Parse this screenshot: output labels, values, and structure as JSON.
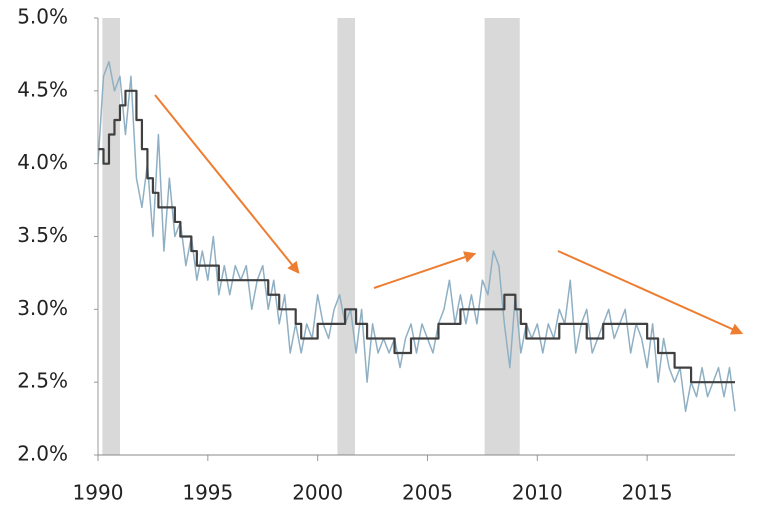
{
  "chart_data": {
    "type": "line",
    "x": [
      1990,
      1990.25,
      1990.5,
      1990.75,
      1991,
      1991.25,
      1991.5,
      1991.75,
      1992,
      1992.25,
      1992.5,
      1992.75,
      1993,
      1993.25,
      1993.5,
      1993.75,
      1994,
      1994.25,
      1994.5,
      1994.75,
      1995,
      1995.25,
      1995.5,
      1995.75,
      1996,
      1996.25,
      1996.5,
      1996.75,
      1997,
      1997.25,
      1997.5,
      1997.75,
      1998,
      1998.25,
      1998.5,
      1998.75,
      1999,
      1999.25,
      1999.5,
      1999.75,
      2000,
      2000.25,
      2000.5,
      2000.75,
      2001,
      2001.25,
      2001.5,
      2001.75,
      2002,
      2002.25,
      2002.5,
      2002.75,
      2003,
      2003.25,
      2003.5,
      2003.75,
      2004,
      2004.25,
      2004.5,
      2004.75,
      2005,
      2005.25,
      2005.5,
      2005.75,
      2006,
      2006.25,
      2006.5,
      2006.75,
      2007,
      2007.25,
      2007.5,
      2007.75,
      2008,
      2008.25,
      2008.5,
      2008.75,
      2009,
      2009.25,
      2009.5,
      2009.75,
      2010,
      2010.25,
      2010.5,
      2010.75,
      2011,
      2011.25,
      2011.5,
      2011.75,
      2012,
      2012.25,
      2012.5,
      2012.75,
      2013,
      2013.25,
      2013.5,
      2013.75,
      2014,
      2014.25,
      2014.5,
      2014.75,
      2015,
      2015.25,
      2015.5,
      2015.75,
      2016,
      2016.25,
      2016.5,
      2016.75,
      2017,
      2017.25,
      2017.5,
      2017.75,
      2018,
      2018.25,
      2018.5,
      2018.75,
      2019
    ],
    "series": [
      {
        "color": "#8fb0c4",
        "width": 1.5,
        "step": false,
        "values": [
          4.0,
          4.6,
          4.7,
          4.5,
          4.6,
          4.2,
          4.6,
          3.9,
          3.7,
          4.0,
          3.5,
          4.2,
          3.4,
          3.9,
          3.5,
          3.6,
          3.3,
          3.5,
          3.2,
          3.4,
          3.2,
          3.5,
          3.1,
          3.3,
          3.1,
          3.3,
          3.2,
          3.3,
          3.0,
          3.2,
          3.3,
          3.0,
          3.2,
          2.9,
          3.1,
          2.7,
          2.9,
          2.7,
          2.9,
          2.8,
          3.1,
          2.9,
          2.8,
          3.0,
          3.1,
          2.9,
          3.0,
          2.7,
          3.0,
          2.5,
          2.9,
          2.7,
          2.8,
          2.7,
          2.8,
          2.6,
          2.8,
          2.9,
          2.7,
          2.9,
          2.8,
          2.7,
          2.9,
          3.0,
          3.2,
          2.9,
          3.1,
          2.9,
          3.1,
          2.9,
          3.2,
          3.1,
          3.4,
          3.3,
          2.9,
          2.6,
          3.1,
          2.7,
          2.9,
          2.8,
          2.9,
          2.7,
          2.9,
          2.8,
          3.0,
          2.9,
          3.2,
          2.7,
          2.9,
          3.0,
          2.7,
          2.8,
          2.9,
          3.0,
          2.8,
          2.9,
          3.0,
          2.7,
          2.9,
          2.8,
          2.6,
          2.9,
          2.5,
          2.8,
          2.6,
          2.5,
          2.6,
          2.3,
          2.5,
          2.4,
          2.6,
          2.4,
          2.5,
          2.6,
          2.4,
          2.6,
          2.3
        ]
      },
      {
        "color": "#404040",
        "width": 2.2,
        "step": true,
        "values": [
          4.1,
          4.0,
          4.2,
          4.3,
          4.4,
          4.5,
          4.5,
          4.3,
          4.1,
          3.9,
          3.8,
          3.7,
          3.7,
          3.7,
          3.6,
          3.5,
          3.5,
          3.4,
          3.3,
          3.3,
          3.3,
          3.3,
          3.2,
          3.2,
          3.2,
          3.2,
          3.2,
          3.2,
          3.2,
          3.2,
          3.2,
          3.1,
          3.1,
          3.0,
          3.0,
          3.0,
          2.9,
          2.8,
          2.8,
          2.8,
          2.9,
          2.9,
          2.9,
          2.9,
          2.9,
          3.0,
          3.0,
          2.9,
          2.9,
          2.8,
          2.8,
          2.8,
          2.8,
          2.8,
          2.7,
          2.7,
          2.7,
          2.8,
          2.8,
          2.8,
          2.8,
          2.8,
          2.9,
          2.9,
          2.9,
          2.9,
          3.0,
          3.0,
          3.0,
          3.0,
          3.0,
          3.0,
          3.0,
          3.0,
          3.1,
          3.1,
          3.0,
          2.9,
          2.8,
          2.8,
          2.8,
          2.8,
          2.8,
          2.8,
          2.9,
          2.9,
          2.9,
          2.9,
          2.9,
          2.8,
          2.8,
          2.8,
          2.9,
          2.9,
          2.9,
          2.9,
          2.9,
          2.9,
          2.9,
          2.9,
          2.8,
          2.8,
          2.7,
          2.7,
          2.7,
          2.6,
          2.6,
          2.6,
          2.5,
          2.5,
          2.5,
          2.5,
          2.5,
          2.5,
          2.5,
          2.5,
          2.5
        ]
      }
    ],
    "shading": [
      [
        1990.2,
        1991.0
      ],
      [
        2000.9,
        2001.7
      ],
      [
        2007.6,
        2009.2
      ]
    ],
    "shading_color": "#d9d9d9",
    "xlim": [
      1990,
      2019
    ],
    "xticks": [
      1990,
      1995,
      2000,
      2005,
      2010,
      2015
    ],
    "ylim": [
      2.0,
      5.0
    ],
    "yticks": [
      {
        "value": 2.0,
        "label": "2.0%"
      },
      {
        "value": 2.5,
        "label": "2.5%"
      },
      {
        "value": 3.0,
        "label": "3.0%"
      },
      {
        "value": 3.5,
        "label": "3.5%"
      },
      {
        "value": 4.0,
        "label": "4.0%"
      },
      {
        "value": 4.5,
        "label": "4.5%"
      },
      {
        "value": 5.0,
        "label": "5.0%"
      }
    ]
  }
}
